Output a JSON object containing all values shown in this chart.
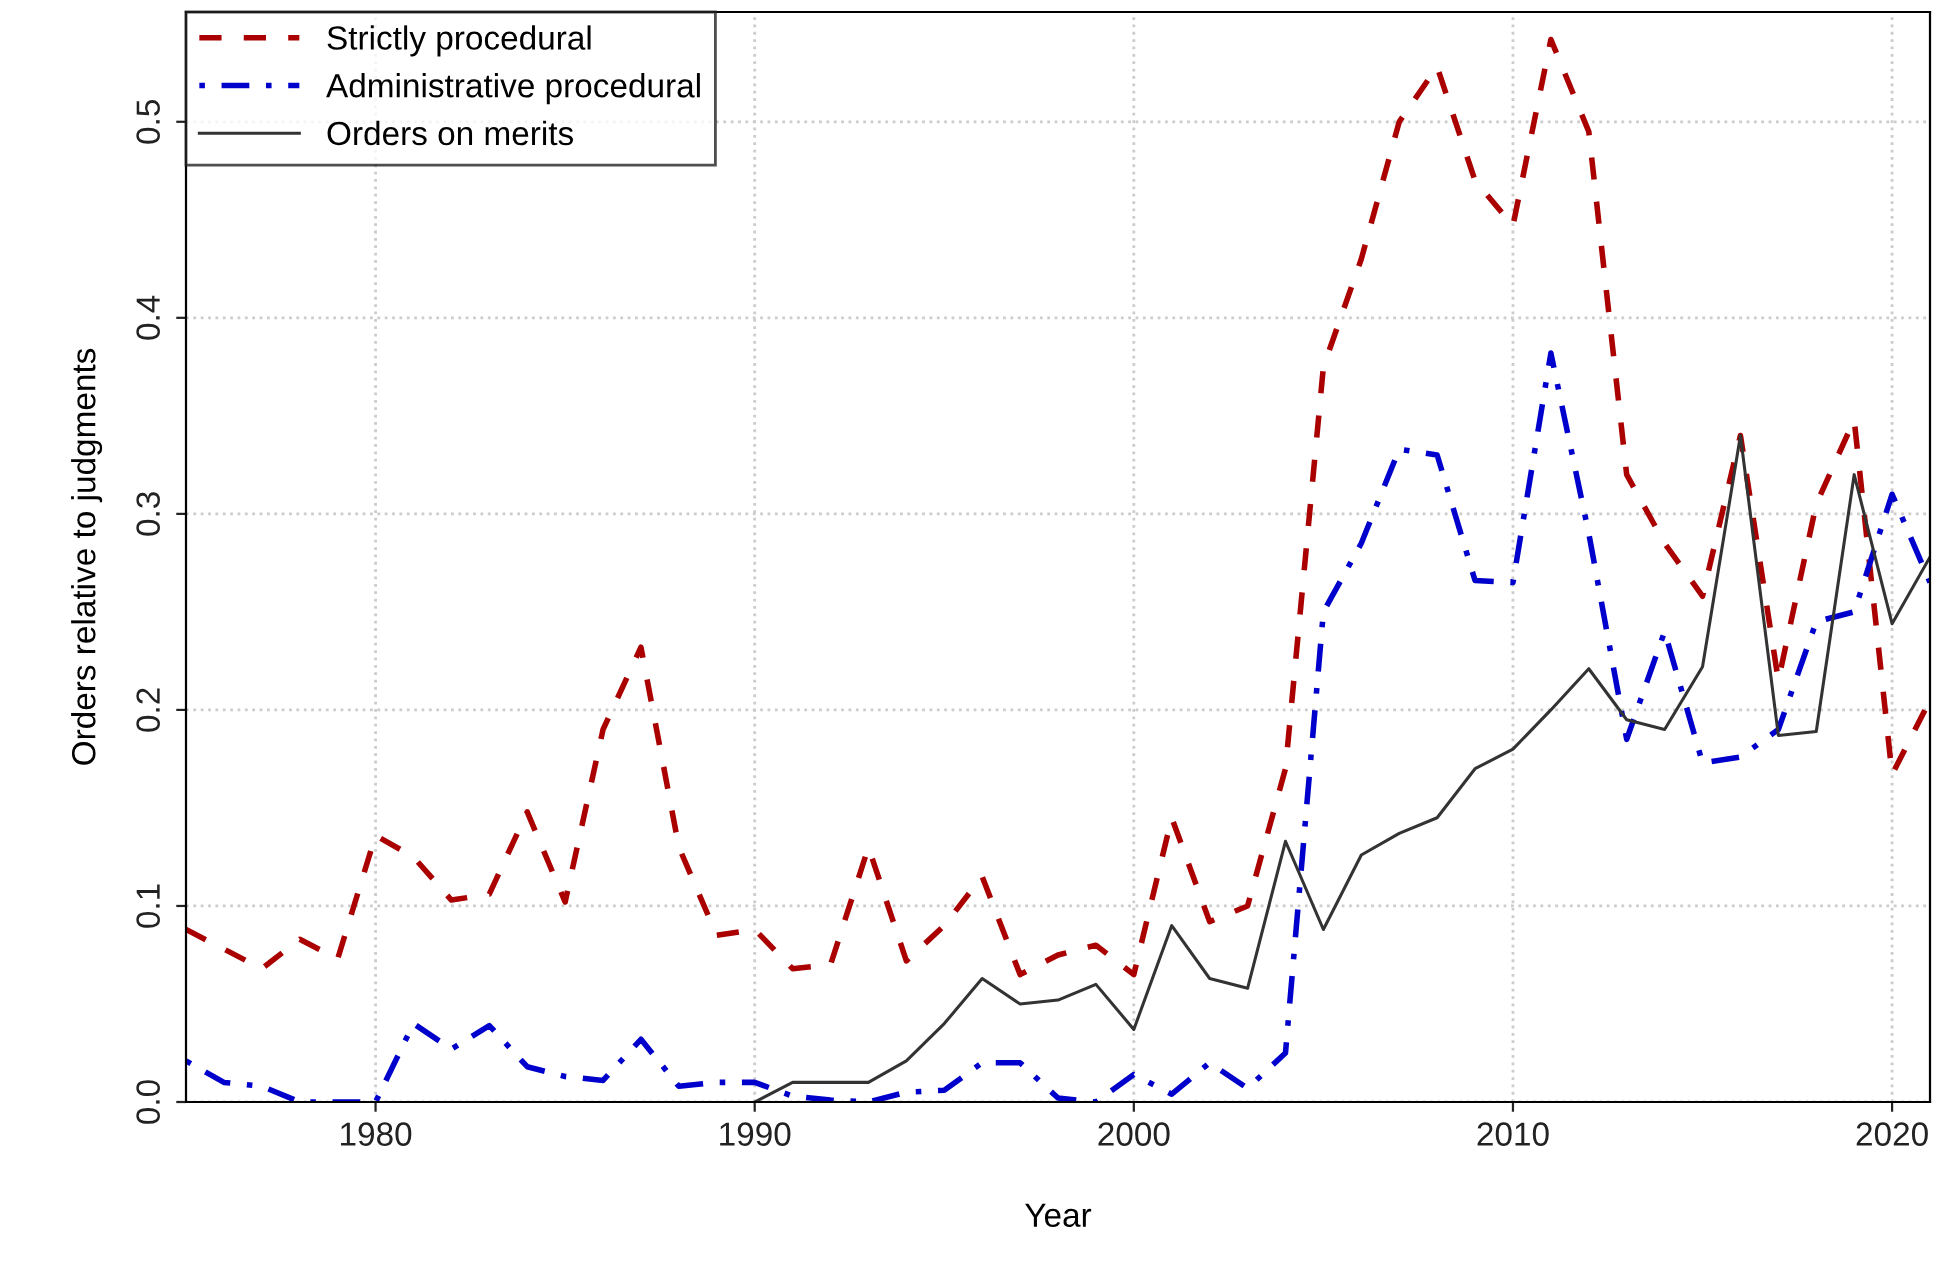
{
  "chart_data": {
    "type": "line",
    "xlabel": "Year",
    "ylabel": "Orders relative to judgments",
    "x": [
      1975,
      1976,
      1977,
      1978,
      1979,
      1980,
      1981,
      1982,
      1983,
      1984,
      1985,
      1986,
      1987,
      1988,
      1989,
      1990,
      1991,
      1992,
      1993,
      1994,
      1995,
      1996,
      1997,
      1998,
      1999,
      2000,
      2001,
      2002,
      2003,
      2004,
      2005,
      2006,
      2007,
      2008,
      2009,
      2010,
      2011,
      2012,
      2013,
      2014,
      2015,
      2016,
      2017,
      2018,
      2019,
      2020,
      2021
    ],
    "series": [
      {
        "name": "Strictly procedural",
        "color": "#aa0000",
        "line_style": "dashed",
        "values": [
          0.088,
          0.078,
          0.068,
          0.083,
          0.073,
          0.136,
          0.125,
          0.103,
          0.106,
          0.148,
          0.102,
          0.19,
          0.232,
          0.13,
          0.085,
          0.088,
          0.068,
          0.07,
          0.13,
          0.072,
          0.09,
          0.115,
          0.065,
          0.075,
          0.08,
          0.065,
          0.145,
          0.092,
          0.1,
          0.17,
          0.375,
          0.43,
          0.5,
          0.528,
          0.47,
          0.447,
          0.542,
          0.495,
          0.32,
          0.285,
          0.258,
          0.34,
          0.215,
          0.305,
          0.348,
          0.167,
          0.205
        ]
      },
      {
        "name": "Administrative procedural",
        "color": "#0000cc",
        "line_style": "dashdot",
        "values": [
          0.021,
          0.01,
          0.008,
          0,
          0,
          0,
          0.04,
          0.027,
          0.039,
          0.018,
          0.013,
          0.011,
          0.032,
          0.008,
          0.01,
          0.01,
          0.003,
          0.001,
          0,
          0.005,
          0.006,
          0.02,
          0.02,
          0.002,
          0,
          0.014,
          0.004,
          0.02,
          0.007,
          0.025,
          0.25,
          0.285,
          0.333,
          0.33,
          0.266,
          0.265,
          0.382,
          0.29,
          0.185,
          0.24,
          0.173,
          0.176,
          0.19,
          0.245,
          0.25,
          0.31,
          0.265
        ]
      },
      {
        "name": "Orders on merits",
        "color": "#333333",
        "line_style": "solid",
        "values": [
          null,
          null,
          null,
          null,
          null,
          null,
          null,
          null,
          null,
          null,
          null,
          null,
          null,
          null,
          null,
          0,
          0.01,
          0.01,
          0.01,
          0.021,
          0.04,
          0.063,
          0.05,
          0.052,
          0.06,
          0.037,
          0.09,
          0.063,
          0.058,
          0.133,
          0.088,
          0.126,
          0.137,
          0.145,
          0.17,
          0.18,
          0.2,
          0.221,
          0.195,
          0.19,
          0.222,
          0.34,
          0.187,
          0.189,
          0.32,
          0.244,
          0.278
        ]
      }
    ],
    "xlim": [
      1975,
      2021
    ],
    "ylim": [
      0,
      0.556
    ],
    "xticks": [
      1980,
      1990,
      2000,
      2010,
      2020
    ],
    "yticks": [
      {
        "value": 0,
        "label": "0.0"
      },
      0.1,
      0.2,
      0.3,
      0.4,
      0.5
    ],
    "grid": true,
    "legend": "top left"
  }
}
